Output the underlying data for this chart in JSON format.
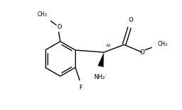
{
  "bg_color": "#ffffff",
  "line_color": "#000000",
  "line_width": 1.0,
  "font_size": 6.0,
  "figsize": [
    2.57,
    1.56
  ],
  "dpi": 100,
  "xlim": [
    0,
    257
  ],
  "ylim": [
    0,
    156
  ]
}
